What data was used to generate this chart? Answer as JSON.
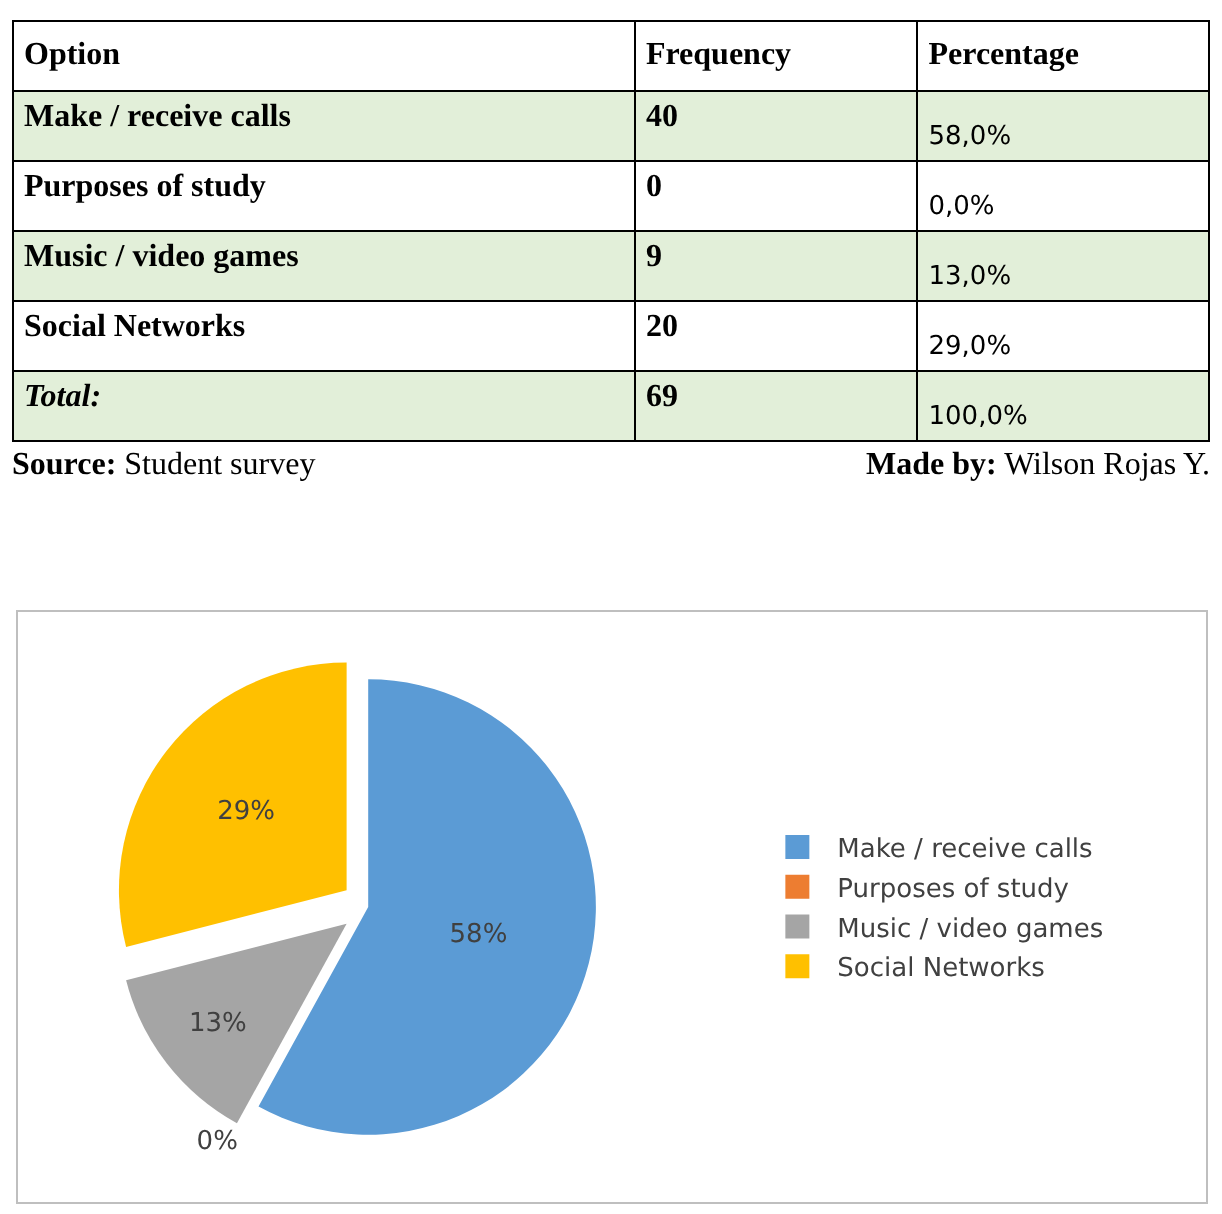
{
  "chart_data": [
    {
      "type": "other",
      "xlabel": "Option",
      "categories": [
        "Make / receive calls",
        "Purposes of study",
        "Music / video games",
        "Social Networks"
      ],
      "series": [
        {
          "name": "Frequency",
          "values": [
            40,
            0,
            9,
            20
          ]
        },
        {
          "name": "Percentage",
          "values": [
            58.0,
            0.0,
            13.0,
            29.0
          ],
          "value_labels": [
            "58,0%",
            "0,0%",
            "13,0%",
            "29,0%"
          ]
        }
      ],
      "data_labels": true,
      "totals": [
        "Total:",
        "69",
        "100,0%"
      ],
      "annotations": [
        "Source: Student survey",
        "Made by: Wilson Rojas Y."
      ]
    },
    {
      "type": "pie",
      "categories": [
        "Make / receive calls",
        "Purposes of study",
        "Music / video games",
        "Social Networks"
      ],
      "values": [
        58,
        0,
        13,
        29
      ],
      "value_labels": [
        "58%",
        "0%",
        "13%",
        "29%"
      ],
      "colors": [
        "#5b9bd5",
        "#ed7d31",
        "#a5a5a5",
        "#ffc000"
      ],
      "legend": "right"
    }
  ]
}
